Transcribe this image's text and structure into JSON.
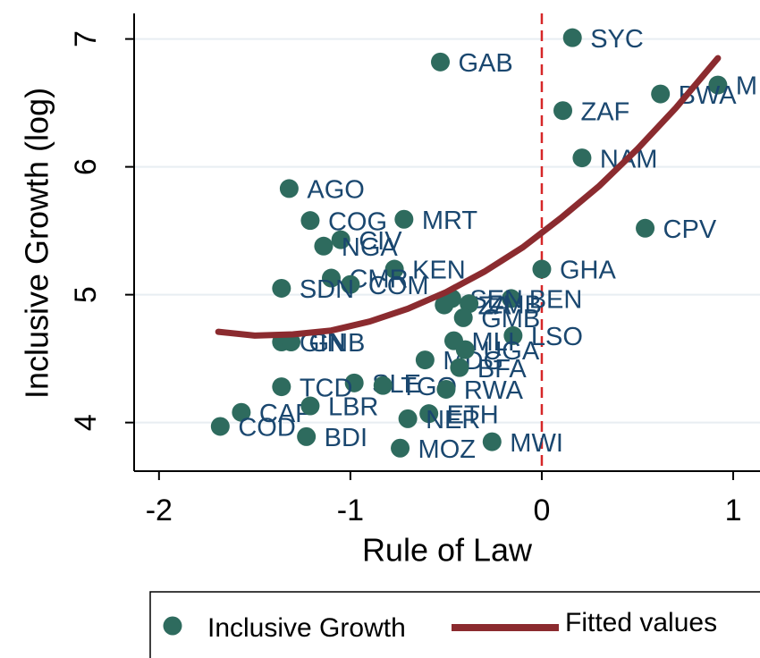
{
  "chart_data": {
    "type": "scatter",
    "x_label": "Rule of Law",
    "y_label": "Inclusive Growth (log)",
    "xlim": [
      -2.13,
      1.14
    ],
    "ylim": [
      3.62,
      7.2
    ],
    "xticks": [
      -2,
      -1,
      0,
      1
    ],
    "yticks": [
      4,
      5,
      6,
      7
    ],
    "grid": true,
    "xline": {
      "value": 0,
      "color": "#d62728"
    },
    "series": [
      {
        "name": "Inclusive Growth",
        "type": "scatter",
        "color": "#2e6b5e",
        "labels": [
          "SYC",
          "GAB",
          "M",
          "BWA",
          "ZAF",
          "NAM",
          "CPV",
          "AGO",
          "COG",
          "MRT",
          "CIV",
          "NGA",
          "KEN",
          "CMR",
          "COM",
          "SDN",
          "GHA",
          "BEN",
          "SEN",
          "TZA",
          "ZMB",
          "GMB",
          "LSO",
          "MLI",
          "GIN",
          "GNB",
          "MDG",
          "UGA",
          "BFA",
          "SLE",
          "TGO",
          "RWA",
          "TCD",
          "CAF",
          "COD",
          "LBR",
          "BDI",
          "ETH",
          "NER",
          "MOZ",
          "MWI"
        ],
        "x": [
          0.16,
          -0.53,
          0.92,
          0.62,
          0.11,
          0.21,
          0.54,
          -1.32,
          -1.21,
          -0.72,
          -1.05,
          -1.14,
          -0.77,
          -1.1,
          -1.0,
          -1.36,
          0.0,
          -0.16,
          -0.47,
          -0.51,
          -0.38,
          -0.41,
          -0.15,
          -0.46,
          -1.36,
          -1.31,
          -0.61,
          -0.4,
          -0.43,
          -0.98,
          -0.83,
          -0.5,
          -1.36,
          -1.57,
          -1.68,
          -1.21,
          -1.23,
          -0.59,
          -0.7,
          -0.74,
          -0.26
        ],
        "values": [
          7.01,
          6.82,
          6.64,
          6.57,
          6.44,
          6.07,
          5.52,
          5.83,
          5.58,
          5.59,
          5.43,
          5.38,
          5.2,
          5.13,
          5.08,
          5.05,
          5.2,
          4.97,
          4.97,
          4.92,
          4.93,
          4.82,
          4.68,
          4.64,
          4.63,
          4.63,
          4.49,
          4.57,
          4.43,
          4.31,
          4.29,
          4.26,
          4.28,
          4.08,
          3.97,
          4.13,
          3.89,
          4.07,
          4.03,
          3.8,
          3.85
        ]
      },
      {
        "name": "Fitted values",
        "type": "line",
        "color": "#8b2b2f",
        "x": [
          -1.69,
          -1.5,
          -1.3,
          -1.1,
          -0.9,
          -0.7,
          -0.5,
          -0.3,
          -0.1,
          0.1,
          0.3,
          0.5,
          0.7,
          0.92
        ],
        "values": [
          4.71,
          4.68,
          4.69,
          4.72,
          4.79,
          4.89,
          5.02,
          5.18,
          5.37,
          5.6,
          5.85,
          6.14,
          6.46,
          6.85
        ]
      }
    ]
  }
}
